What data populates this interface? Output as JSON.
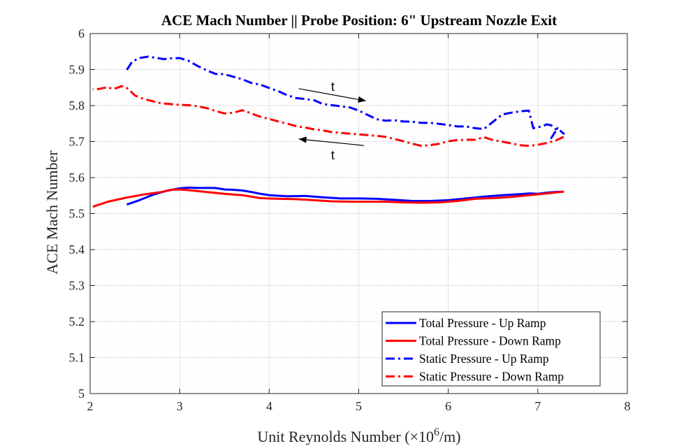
{
  "chart_data": {
    "type": "line",
    "title": "ACE Mach Number || Probe Position: 6\" Upstream Nozzle Exit",
    "xlabel_prefix": "Unit Reynolds Number (",
    "xlabel_times": "×10",
    "xlabel_exp": "6",
    "xlabel_suffix": "/m)",
    "ylabel": "ACE Mach Number",
    "xlim": [
      2,
      8
    ],
    "ylim": [
      5,
      6
    ],
    "x_ticks": [
      "2",
      "3",
      "4",
      "5",
      "6",
      "7",
      "8"
    ],
    "y_ticks": [
      "5",
      "5.1",
      "5.2",
      "5.3",
      "5.4",
      "5.5",
      "5.6",
      "5.7",
      "5.8",
      "5.9",
      "6"
    ],
    "grid": true,
    "minor_grid": true,
    "legend_position": "bottom-right",
    "annotations": [
      {
        "text": "t",
        "direction": "right",
        "arrow_from": [
          4.33,
          5.847
        ],
        "arrow_to": [
          5.08,
          5.813
        ],
        "label_at": [
          4.71,
          5.852
        ]
      },
      {
        "text": "t",
        "direction": "left",
        "arrow_from": [
          5.06,
          5.689
        ],
        "arrow_to": [
          4.33,
          5.707
        ],
        "label_at": [
          4.71,
          5.662
        ]
      }
    ],
    "series": [
      {
        "name": "Total Pressure - Up Ramp",
        "color": "#0000ff",
        "style": "solid",
        "x": [
          2.41,
          2.55,
          2.7,
          2.85,
          3.0,
          3.1,
          3.2,
          3.3,
          3.4,
          3.5,
          3.6,
          3.7,
          3.8,
          3.9,
          4.0,
          4.2,
          4.4,
          4.6,
          4.8,
          5.0,
          5.2,
          5.4,
          5.6,
          5.7,
          5.8,
          6.0,
          6.2,
          6.4,
          6.6,
          6.8,
          6.9,
          7.0,
          7.1,
          7.2,
          7.29
        ],
        "y": [
          5.525,
          5.537,
          5.552,
          5.563,
          5.57,
          5.572,
          5.571,
          5.571,
          5.571,
          5.567,
          5.566,
          5.564,
          5.56,
          5.555,
          5.551,
          5.548,
          5.549,
          5.545,
          5.542,
          5.542,
          5.541,
          5.538,
          5.535,
          5.535,
          5.535,
          5.537,
          5.542,
          5.547,
          5.551,
          5.554,
          5.556,
          5.555,
          5.558,
          5.56,
          5.561
        ]
      },
      {
        "name": "Total Pressure - Down Ramp",
        "color": "#ff0000",
        "style": "solid",
        "x": [
          7.29,
          7.1,
          6.9,
          6.7,
          6.5,
          6.3,
          6.1,
          5.9,
          5.7,
          5.5,
          5.3,
          5.1,
          4.9,
          4.7,
          4.5,
          4.3,
          4.1,
          3.9,
          3.7,
          3.5,
          3.3,
          3.1,
          3.0,
          2.9,
          2.8,
          2.6,
          2.4,
          2.2,
          2.03
        ],
        "y": [
          5.561,
          5.556,
          5.551,
          5.546,
          5.543,
          5.541,
          5.535,
          5.531,
          5.53,
          5.531,
          5.533,
          5.533,
          5.533,
          5.534,
          5.537,
          5.54,
          5.541,
          5.543,
          5.551,
          5.555,
          5.56,
          5.565,
          5.567,
          5.566,
          5.56,
          5.553,
          5.544,
          5.533,
          5.519
        ]
      },
      {
        "name": "Static Pressure - Up Ramp",
        "color": "#0000ff",
        "style": "dashdot",
        "x": [
          2.41,
          2.47,
          2.55,
          2.65,
          2.75,
          2.82,
          2.9,
          3.0,
          3.1,
          3.2,
          3.3,
          3.4,
          3.5,
          3.6,
          3.7,
          3.8,
          3.9,
          4.0,
          4.1,
          4.2,
          4.3,
          4.4,
          4.5,
          4.6,
          4.7,
          4.8,
          4.9,
          5.0,
          5.1,
          5.2,
          5.3,
          5.4,
          5.5,
          5.6,
          5.7,
          5.8,
          5.9,
          6.0,
          6.1,
          6.2,
          6.3,
          6.4,
          6.5,
          6.6,
          6.7,
          6.8,
          6.9,
          6.95,
          7.0,
          7.05,
          7.1,
          7.15,
          7.2,
          7.25,
          7.29,
          7.22,
          7.15,
          7.2
        ],
        "y": [
          5.899,
          5.922,
          5.932,
          5.936,
          5.932,
          5.929,
          5.931,
          5.932,
          5.924,
          5.91,
          5.898,
          5.888,
          5.887,
          5.88,
          5.873,
          5.863,
          5.858,
          5.849,
          5.84,
          5.829,
          5.821,
          5.818,
          5.815,
          5.804,
          5.801,
          5.798,
          5.795,
          5.786,
          5.774,
          5.762,
          5.758,
          5.759,
          5.756,
          5.755,
          5.752,
          5.752,
          5.749,
          5.746,
          5.742,
          5.742,
          5.737,
          5.735,
          5.755,
          5.775,
          5.78,
          5.784,
          5.786,
          5.737,
          5.74,
          5.742,
          5.748,
          5.745,
          5.734,
          5.73,
          5.722,
          5.737,
          5.71,
          5.729
        ]
      },
      {
        "name": "Static Pressure - Down Ramp",
        "color": "#ff0000",
        "style": "dashdot",
        "x": [
          7.29,
          7.2,
          7.1,
          7.0,
          6.9,
          6.8,
          6.7,
          6.6,
          6.5,
          6.4,
          6.3,
          6.2,
          6.1,
          6.0,
          5.9,
          5.8,
          5.7,
          5.6,
          5.5,
          5.4,
          5.3,
          5.2,
          5.1,
          5.0,
          4.9,
          4.8,
          4.7,
          4.6,
          4.5,
          4.4,
          4.3,
          4.2,
          4.1,
          4.0,
          3.9,
          3.8,
          3.75,
          3.7,
          3.6,
          3.5,
          3.4,
          3.3,
          3.2,
          3.1,
          3.0,
          2.9,
          2.8,
          2.7,
          2.6,
          2.5,
          2.45,
          2.4,
          2.35,
          2.3,
          2.25,
          2.2,
          2.15,
          2.1,
          2.05,
          2.03
        ],
        "y": [
          5.713,
          5.703,
          5.696,
          5.691,
          5.688,
          5.69,
          5.695,
          5.7,
          5.704,
          5.712,
          5.705,
          5.705,
          5.704,
          5.701,
          5.694,
          5.69,
          5.688,
          5.694,
          5.701,
          5.707,
          5.713,
          5.716,
          5.718,
          5.72,
          5.722,
          5.724,
          5.726,
          5.731,
          5.734,
          5.739,
          5.743,
          5.75,
          5.756,
          5.763,
          5.769,
          5.778,
          5.783,
          5.787,
          5.78,
          5.778,
          5.785,
          5.793,
          5.798,
          5.801,
          5.802,
          5.804,
          5.806,
          5.812,
          5.818,
          5.828,
          5.84,
          5.851,
          5.854,
          5.849,
          5.846,
          5.851,
          5.849,
          5.846,
          5.845,
          5.845
        ]
      }
    ]
  }
}
